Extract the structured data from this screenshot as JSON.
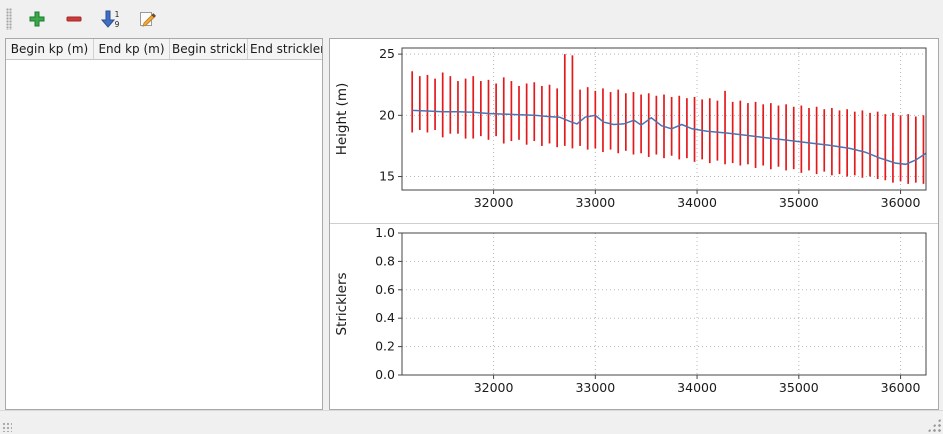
{
  "app": {
    "background": "#f0f0f0"
  },
  "toolbar": {
    "buttons": [
      {
        "id": "add-row-button",
        "icon": "plus-icon",
        "color": "#39a849"
      },
      {
        "id": "remove-row-button",
        "icon": "minus-icon",
        "color": "#cc3a3a"
      },
      {
        "id": "sort-rows-button",
        "icon": "sort-numeric-down-icon",
        "color": "#3f6fc4"
      },
      {
        "id": "edit-button",
        "icon": "pencil-icon",
        "color": "#f0a73a"
      }
    ],
    "sort_icon_digits": [
      "1",
      "9"
    ]
  },
  "table": {
    "columns": [
      "Begin kp (m)",
      "End kp (m)",
      "Begin strickler",
      "End strickler"
    ],
    "rows": []
  },
  "chart_data": [
    {
      "type": "bar+line",
      "title": "",
      "xlabel": "",
      "ylabel": "Height (m)",
      "xlim": [
        31100,
        36250
      ],
      "ylim": [
        13.9,
        25.5
      ],
      "xticks": [
        32000,
        33000,
        34000,
        35000,
        36000
      ],
      "xtick_labels": [
        "32000",
        "33000",
        "34000",
        "35000",
        "36000"
      ],
      "yticks": [
        15,
        20,
        25
      ],
      "ytick_labels": [
        "15",
        "20",
        "25"
      ],
      "grid": true,
      "bar_color": "#e31a1c",
      "line_color": "#4c72b0",
      "bars": [
        [
          31200,
          18.6,
          23.6
        ],
        [
          31275,
          18.8,
          23.2
        ],
        [
          31350,
          18.6,
          23.3
        ],
        [
          31425,
          18.8,
          23.0
        ],
        [
          31500,
          18.2,
          23.5
        ],
        [
          31575,
          18.5,
          23.2
        ],
        [
          31650,
          18.5,
          22.8
        ],
        [
          31725,
          18.1,
          23.0
        ],
        [
          31800,
          18.1,
          23.2
        ],
        [
          31875,
          18.3,
          22.8
        ],
        [
          31950,
          18.0,
          22.9
        ],
        [
          32025,
          18.3,
          22.6
        ],
        [
          32100,
          17.7,
          23.1
        ],
        [
          32175,
          17.9,
          22.8
        ],
        [
          32250,
          18.0,
          22.4
        ],
        [
          32325,
          17.6,
          22.6
        ],
        [
          32400,
          17.9,
          22.7
        ],
        [
          32475,
          17.5,
          22.4
        ],
        [
          32550,
          17.7,
          22.5
        ],
        [
          32625,
          17.4,
          22.2
        ],
        [
          32700,
          17.5,
          25.0
        ],
        [
          32775,
          17.3,
          24.9
        ],
        [
          32850,
          17.5,
          22.1
        ],
        [
          32925,
          17.2,
          22.3
        ],
        [
          33000,
          17.3,
          22.0
        ],
        [
          33075,
          17.0,
          22.2
        ],
        [
          33150,
          17.2,
          21.9
        ],
        [
          33225,
          16.9,
          22.1
        ],
        [
          33300,
          17.1,
          21.8
        ],
        [
          33375,
          16.8,
          21.9
        ],
        [
          33450,
          16.9,
          21.7
        ],
        [
          33525,
          16.6,
          21.8
        ],
        [
          33600,
          16.8,
          21.6
        ],
        [
          33675,
          16.5,
          21.7
        ],
        [
          33750,
          16.7,
          21.5
        ],
        [
          33825,
          16.4,
          21.6
        ],
        [
          33900,
          16.5,
          21.4
        ],
        [
          33975,
          16.2,
          21.5
        ],
        [
          34050,
          16.4,
          21.3
        ],
        [
          34125,
          16.1,
          21.4
        ],
        [
          34200,
          16.3,
          21.2
        ],
        [
          34275,
          16.0,
          22.0
        ],
        [
          34350,
          16.1,
          21.1
        ],
        [
          34425,
          15.9,
          21.2
        ],
        [
          34500,
          16.0,
          21.0
        ],
        [
          34575,
          15.7,
          21.1
        ],
        [
          34650,
          15.9,
          20.9
        ],
        [
          34725,
          15.6,
          21.0
        ],
        [
          34800,
          15.8,
          20.8
        ],
        [
          34875,
          15.5,
          20.9
        ],
        [
          34950,
          15.6,
          20.7
        ],
        [
          35025,
          15.3,
          20.8
        ],
        [
          35100,
          15.5,
          20.6
        ],
        [
          35175,
          15.2,
          20.7
        ],
        [
          35250,
          15.4,
          20.5
        ],
        [
          35325,
          15.1,
          20.6
        ],
        [
          35400,
          15.2,
          20.4
        ],
        [
          35475,
          15.0,
          20.5
        ],
        [
          35550,
          15.1,
          20.3
        ],
        [
          35625,
          14.9,
          20.4
        ],
        [
          35700,
          15.0,
          20.2
        ],
        [
          35775,
          14.8,
          20.3
        ],
        [
          35850,
          14.7,
          20.1
        ],
        [
          35925,
          14.5,
          20.2
        ],
        [
          36000,
          14.6,
          20.0
        ],
        [
          36075,
          14.4,
          20.1
        ],
        [
          36150,
          14.5,
          19.9
        ],
        [
          36225,
          14.4,
          20.0
        ]
      ],
      "line": [
        [
          31200,
          20.4
        ],
        [
          31350,
          20.35
        ],
        [
          31500,
          20.3
        ],
        [
          31650,
          20.3
        ],
        [
          31800,
          20.25
        ],
        [
          31950,
          20.15
        ],
        [
          32100,
          20.1
        ],
        [
          32250,
          20.05
        ],
        [
          32400,
          20.0
        ],
        [
          32550,
          19.9
        ],
        [
          32650,
          19.85
        ],
        [
          32750,
          19.5
        ],
        [
          32820,
          19.3
        ],
        [
          32900,
          19.85
        ],
        [
          33000,
          20.0
        ],
        [
          33080,
          19.45
        ],
        [
          33180,
          19.25
        ],
        [
          33280,
          19.3
        ],
        [
          33380,
          19.6
        ],
        [
          33450,
          19.2
        ],
        [
          33550,
          19.8
        ],
        [
          33650,
          19.15
        ],
        [
          33750,
          18.9
        ],
        [
          33850,
          19.25
        ],
        [
          33950,
          18.9
        ],
        [
          34100,
          18.7
        ],
        [
          34300,
          18.55
        ],
        [
          34500,
          18.35
        ],
        [
          34700,
          18.15
        ],
        [
          34900,
          17.95
        ],
        [
          35100,
          17.75
        ],
        [
          35300,
          17.55
        ],
        [
          35500,
          17.3
        ],
        [
          35650,
          17.0
        ],
        [
          35800,
          16.5
        ],
        [
          35950,
          16.1
        ],
        [
          36050,
          16.0
        ],
        [
          36150,
          16.35
        ],
        [
          36250,
          16.9
        ]
      ]
    },
    {
      "type": "empty",
      "title": "",
      "xlabel": "",
      "ylabel": "Stricklers",
      "xlim": [
        31100,
        36250
      ],
      "ylim": [
        0,
        1
      ],
      "xticks": [
        32000,
        33000,
        34000,
        35000,
        36000
      ],
      "xtick_labels": [
        "32000",
        "33000",
        "34000",
        "35000",
        "36000"
      ],
      "yticks": [
        0,
        0.2,
        0.4,
        0.6,
        0.8,
        1.0
      ],
      "ytick_labels": [
        "0.0",
        "0.2",
        "0.4",
        "0.6",
        "0.8",
        "1.0"
      ],
      "grid": true,
      "bars": [],
      "line": []
    }
  ]
}
